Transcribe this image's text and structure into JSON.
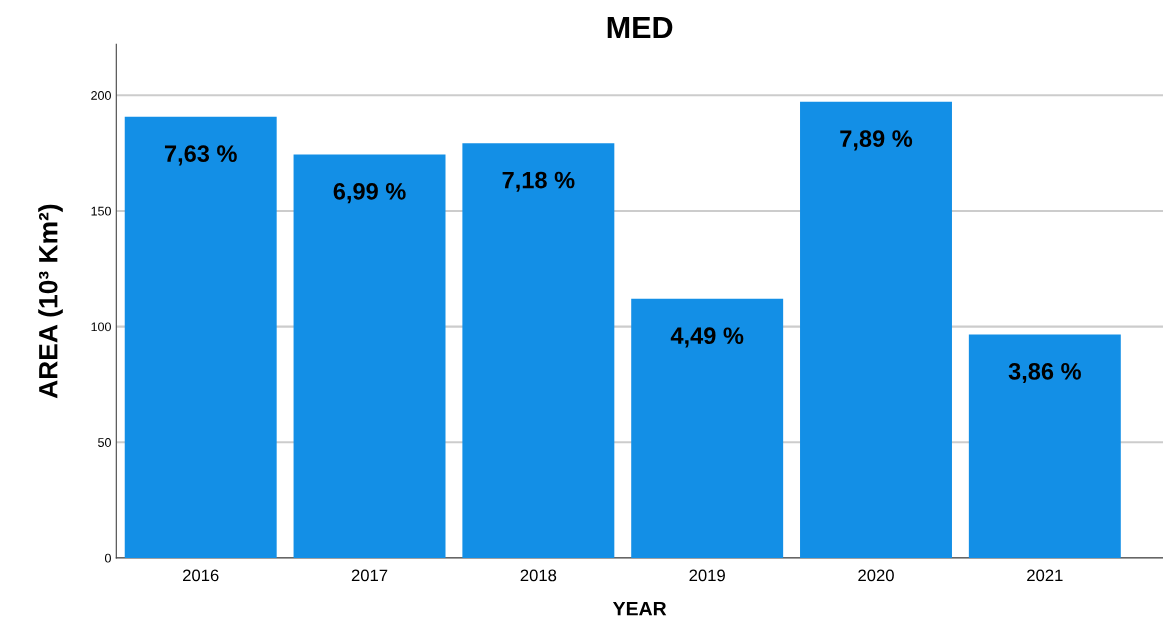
{
  "chart_data": {
    "type": "bar",
    "title": "MED",
    "xlabel": "YEAR",
    "ylabel": "AREA (10³ Km²)",
    "categories": [
      "2016",
      "2017",
      "2018",
      "2019",
      "2020",
      "2021"
    ],
    "values": [
      190.7,
      174.4,
      179.3,
      112.0,
      197.2,
      96.6
    ],
    "annotations": [
      {
        "text": "7,63 %",
        "x": "2016",
        "y": 190.7
      },
      {
        "text": "6,99 %",
        "x": "2017",
        "y": 174.4
      },
      {
        "text": "7,18 %",
        "x": "2018",
        "y": 179.3
      },
      {
        "text": "4,49 %",
        "x": "2019",
        "y": 112.0
      },
      {
        "text": "7,89 %",
        "x": "2020",
        "y": 197.2
      },
      {
        "text": "3,86 %",
        "x": "2021",
        "y": 96.6
      }
    ],
    "color": "#138fe6",
    "ylim": [
      0,
      222
    ],
    "yticks": [
      0,
      50,
      100,
      150,
      200
    ],
    "grid": "y"
  }
}
